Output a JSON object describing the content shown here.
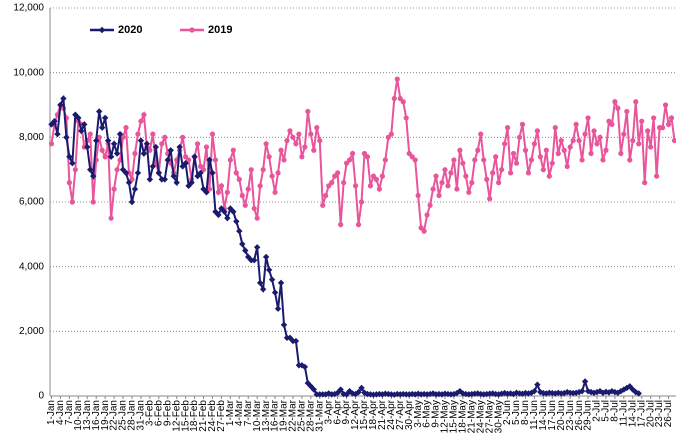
{
  "chart_data": {
    "type": "line",
    "legend": "upper left",
    "grid": true,
    "ylim": [
      0,
      12000
    ],
    "yticks": [
      {
        "value": 0,
        "label": "0"
      },
      {
        "value": 2000,
        "label": "2,000"
      },
      {
        "value": 4000,
        "label": "4,000"
      },
      {
        "value": 6000,
        "label": "6,000"
      },
      {
        "value": 8000,
        "label": "8,000"
      },
      {
        "value": 10000,
        "label": "10,000"
      },
      {
        "value": 12000,
        "label": "12,000"
      }
    ],
    "categories": [
      "1-Jan",
      null,
      null,
      "4-Jan",
      null,
      null,
      "7-Jan",
      null,
      null,
      "10-Jan",
      null,
      null,
      "13-Jan",
      null,
      null,
      "16-Jan",
      null,
      null,
      "19-Jan",
      null,
      null,
      "22-Jan",
      null,
      null,
      "25-Jan",
      null,
      null,
      "28-Jan",
      null,
      null,
      "31-Jan",
      null,
      null,
      "3-Feb",
      null,
      null,
      "6-Feb",
      null,
      null,
      "9-Feb",
      null,
      null,
      "12-Feb",
      null,
      null,
      "15-Feb",
      null,
      null,
      "18-Feb",
      null,
      null,
      "21-Feb",
      null,
      null,
      "24-Feb",
      null,
      null,
      "27-Feb",
      null,
      null,
      "1-Mar",
      null,
      null,
      "4-Mar",
      null,
      null,
      "7-Mar",
      null,
      null,
      "10-Mar",
      null,
      null,
      "13-Mar",
      null,
      null,
      "16-Mar",
      null,
      null,
      "19-Mar",
      null,
      null,
      "22-Mar",
      null,
      null,
      "25-Mar",
      null,
      null,
      "28-Mar",
      null,
      null,
      "31-Mar",
      null,
      null,
      "3-Apr",
      null,
      null,
      "6-Apr",
      null,
      null,
      "9-Apr",
      null,
      null,
      "12-Apr",
      null,
      null,
      "15-Apr",
      null,
      null,
      "18-Apr",
      null,
      null,
      "21-Apr",
      null,
      null,
      "24-Apr",
      null,
      null,
      "27-Apr",
      null,
      null,
      "30-Apr",
      null,
      null,
      "3-May",
      null,
      null,
      "6-May",
      null,
      null,
      "9-May",
      null,
      null,
      "12-May",
      null,
      null,
      "15-May",
      null,
      null,
      "18-May",
      null,
      null,
      "21-May",
      null,
      null,
      "24-May",
      null,
      null,
      "27-May",
      null,
      null,
      "30-May",
      null,
      null,
      "2-Jun",
      null,
      null,
      "5-Jun",
      null,
      null,
      "8-Jun",
      null,
      null,
      "11-Jun",
      null,
      null,
      "14-Jun",
      null,
      null,
      "17-Jun",
      null,
      null,
      "20-Jun",
      null,
      null,
      "23-Jun",
      null,
      null,
      "26-Jun",
      null,
      null,
      "29-Jun",
      null,
      null,
      "2-Jul",
      null,
      null,
      "5-Jul",
      null,
      null,
      "8-Jul",
      null,
      null,
      "11-Jul",
      null,
      null,
      "14-Jul",
      null,
      null,
      "17-Jul",
      null,
      null,
      "20-Jul",
      null,
      null,
      "23-Jul",
      null,
      null,
      "26-Jul",
      null,
      null
    ],
    "series": [
      {
        "name": "2020",
        "color": "#1a1a6e",
        "marker": "diamond",
        "values": [
          8400,
          8500,
          8100,
          9000,
          9200,
          8000,
          7400,
          7200,
          8700,
          8600,
          8200,
          8400,
          7700,
          7000,
          6800,
          7900,
          8800,
          8300,
          8600,
          7900,
          7400,
          7800,
          7500,
          8100,
          7000,
          6900,
          6600,
          6000,
          6400,
          6900,
          7900,
          7500,
          7800,
          6700,
          7100,
          7700,
          6900,
          6700,
          6700,
          7300,
          7600,
          6800,
          6600,
          7700,
          7100,
          7200,
          6500,
          6600,
          7400,
          6800,
          6900,
          6400,
          6300,
          7300,
          6900,
          5700,
          5600,
          5800,
          5700,
          5500,
          5800,
          5700,
          5400,
          5100,
          4700,
          4500,
          4300,
          4200,
          4200,
          4600,
          3500,
          3300,
          4300,
          3900,
          3600,
          3200,
          2700,
          3500,
          2200,
          1800,
          1800,
          1700,
          1700,
          950,
          950,
          900,
          400,
          300,
          200,
          50,
          50,
          50,
          50,
          80,
          50,
          60,
          100,
          200,
          60,
          50,
          150,
          80,
          60,
          120,
          250,
          100,
          60,
          50,
          40,
          50,
          60,
          50,
          70,
          60,
          50,
          40,
          60,
          50,
          60,
          50,
          50,
          60,
          50,
          70,
          50,
          60,
          50,
          60,
          80,
          50,
          60,
          50,
          70,
          60,
          50,
          60,
          90,
          150,
          80,
          60,
          50,
          60,
          70,
          80,
          60,
          50,
          60,
          70,
          80,
          60,
          50,
          70,
          90,
          70,
          80,
          60,
          100,
          80,
          70,
          90,
          80,
          100,
          150,
          350,
          120,
          90,
          80,
          100,
          90,
          80,
          100,
          80,
          90,
          120,
          100,
          90,
          100,
          120,
          150,
          450,
          150,
          120,
          100,
          120,
          150,
          100,
          130,
          110,
          150,
          120,
          100,
          150,
          200,
          250,
          300,
          200,
          120,
          80,
          null,
          null,
          null,
          null,
          null,
          null,
          null,
          null,
          null,
          null,
          null,
          null
        ]
      },
      {
        "name": "2019",
        "color": "#e8559a",
        "marker": "circle",
        "values": [
          7800,
          8400,
          8700,
          9000,
          8900,
          8600,
          6600,
          6000,
          7000,
          8500,
          8400,
          7700,
          7900,
          8100,
          6000,
          7300,
          8000,
          7600,
          7400,
          7800,
          5500,
          6400,
          7000,
          7300,
          8000,
          8300,
          6900,
          6700,
          7500,
          8100,
          8500,
          8700,
          7700,
          7600,
          8100,
          7200,
          6900,
          7800,
          8000,
          7500,
          7200,
          6900,
          7300,
          7600,
          8000,
          7400,
          7300,
          6700,
          7400,
          7800,
          7100,
          7000,
          7700,
          6400,
          8100,
          7300,
          6300,
          6500,
          5800,
          6300,
          7300,
          7600,
          6900,
          6700,
          6200,
          5900,
          6400,
          7000,
          5800,
          5500,
          6500,
          7000,
          7800,
          7400,
          6800,
          6300,
          6900,
          7600,
          7300,
          7900,
          8200,
          8000,
          7800,
          8100,
          7400,
          7700,
          8800,
          8100,
          7600,
          8300,
          7900,
          5900,
          6200,
          6500,
          6600,
          6800,
          6900,
          5300,
          6600,
          7200,
          7300,
          7500,
          6500,
          5300,
          6000,
          7500,
          7400,
          6500,
          6800,
          6700,
          6400,
          6800,
          7300,
          8000,
          8100,
          9200,
          9800,
          9200,
          9100,
          8600,
          7500,
          7400,
          7300,
          6200,
          5200,
          5100,
          5600,
          5900,
          6400,
          6800,
          6200,
          6600,
          7000,
          6500,
          6900,
          7300,
          6400,
          7600,
          7200,
          6800,
          6300,
          6600,
          7300,
          7600,
          8100,
          7300,
          6700,
          6100,
          6900,
          7400,
          6600,
          7000,
          7800,
          8300,
          6900,
          7500,
          7200,
          8000,
          8400,
          7600,
          6900,
          7300,
          7800,
          8200,
          7400,
          7000,
          7600,
          6800,
          7200,
          8300,
          7500,
          7900,
          7600,
          7100,
          7700,
          7900,
          8400,
          7900,
          7300,
          8100,
          8600,
          7500,
          8200,
          7800,
          8000,
          7300,
          7600,
          8500,
          8400,
          9100,
          8900,
          7500,
          8100,
          8800,
          7300,
          7900,
          9100,
          7800,
          8500,
          6600,
          8200,
          7700,
          8600,
          6800,
          8300,
          8300,
          9000,
          8400,
          8600,
          7900
        ]
      }
    ]
  }
}
